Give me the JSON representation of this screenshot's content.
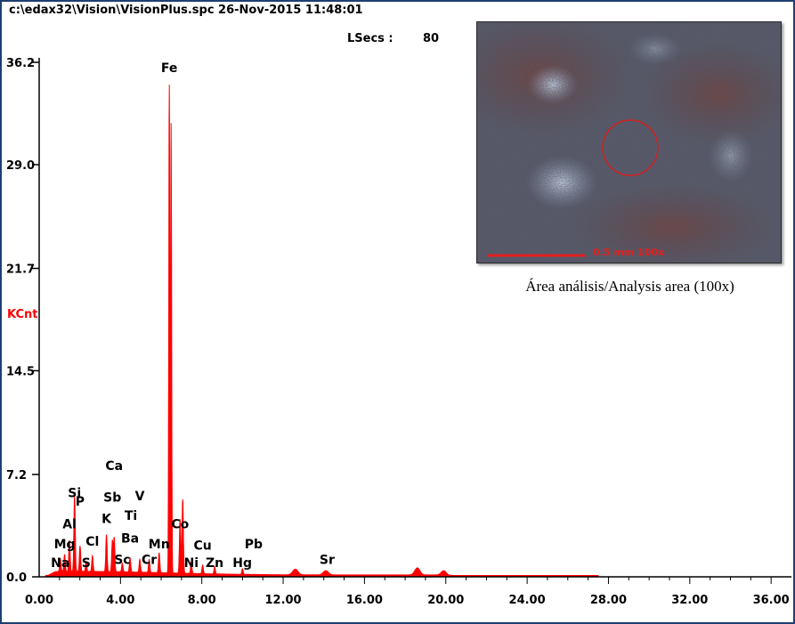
{
  "header": {
    "file_info": "c:\\edax32\\Vision\\VisionPlus.spc  26-Nov-2015 11:48:01",
    "lsecs_label": "LSecs :",
    "lsecs_value": "80"
  },
  "inset": {
    "scale_label": "0.5 mm  100x",
    "caption": "Área análisis/Analysis area (100x)"
  },
  "chart_data": {
    "type": "line",
    "xlim": [
      0,
      37
    ],
    "ylim": [
      0,
      36.2
    ],
    "ylabel": "KCnt",
    "x_ticks": [
      "0.00",
      "4.00",
      "8.00",
      "12.00",
      "16.00",
      "20.00",
      "24.00",
      "28.00",
      "32.00",
      "36.00"
    ],
    "x_tick_values": [
      0,
      4,
      8,
      12,
      16,
      20,
      24,
      28,
      32,
      36
    ],
    "y_ticks": [
      "0.0",
      "7.2",
      "14.5",
      "21.7",
      "29.0",
      "36.2"
    ],
    "y_tick_values": [
      0,
      7.2,
      14.5,
      21.7,
      29.0,
      36.2
    ],
    "grid": false,
    "series_color": "#ff0000",
    "peaks": [
      {
        "x": 1.04,
        "y": 0.9
      },
      {
        "x": 1.25,
        "y": 1.2
      },
      {
        "x": 1.49,
        "y": 2.2
      },
      {
        "x": 1.74,
        "y": 5.3
      },
      {
        "x": 2.01,
        "y": 1.8
      },
      {
        "x": 2.31,
        "y": 0.7
      },
      {
        "x": 2.62,
        "y": 1.1
      },
      {
        "x": 3.31,
        "y": 2.6
      },
      {
        "x": 3.6,
        "y": 2.2
      },
      {
        "x": 3.69,
        "y": 2.4
      },
      {
        "x": 4.09,
        "y": 0.6
      },
      {
        "x": 4.47,
        "y": 1.0
      },
      {
        "x": 4.95,
        "y": 0.9
      },
      {
        "x": 5.41,
        "y": 0.9
      },
      {
        "x": 5.9,
        "y": 1.4
      },
      {
        "x": 6.4,
        "y": 34.3
      },
      {
        "x": 6.49,
        "y": 31.6
      },
      {
        "x": 6.93,
        "y": 3.8
      },
      {
        "x": 7.06,
        "y": 5.2
      },
      {
        "x": 7.48,
        "y": 0.8
      },
      {
        "x": 8.04,
        "y": 0.6
      },
      {
        "x": 8.63,
        "y": 0.5
      },
      {
        "x": 10.0,
        "y": 0.4
      },
      {
        "x": 12.6,
        "y": 0.4
      },
      {
        "x": 14.1,
        "y": 0.3
      },
      {
        "x": 18.6,
        "y": 0.5
      },
      {
        "x": 19.9,
        "y": 0.3
      }
    ],
    "element_labels": [
      {
        "label": "Fe",
        "x": 6.4,
        "y": 35.5
      },
      {
        "label": "Ca",
        "x": 3.69,
        "y": 7.5
      },
      {
        "label": "Si",
        "x": 1.74,
        "y": 5.6
      },
      {
        "label": "P",
        "x": 2.01,
        "y": 5.0
      },
      {
        "label": "Sb",
        "x": 3.6,
        "y": 5.3
      },
      {
        "label": "V",
        "x": 4.95,
        "y": 5.4
      },
      {
        "label": "Ti",
        "x": 4.51,
        "y": 4.0
      },
      {
        "label": "K",
        "x": 3.31,
        "y": 3.8
      },
      {
        "label": "Al",
        "x": 1.49,
        "y": 3.4
      },
      {
        "label": "Co",
        "x": 6.93,
        "y": 3.4
      },
      {
        "label": "Mg",
        "x": 1.25,
        "y": 2.0
      },
      {
        "label": "Cl",
        "x": 2.62,
        "y": 2.2
      },
      {
        "label": "Ba",
        "x": 4.47,
        "y": 2.4
      },
      {
        "label": "Mn",
        "x": 5.9,
        "y": 2.0
      },
      {
        "label": "Cu",
        "x": 8.04,
        "y": 1.9
      },
      {
        "label": "Pb",
        "x": 10.55,
        "y": 2.0
      },
      {
        "label": "Na",
        "x": 1.04,
        "y": 0.7
      },
      {
        "label": "S",
        "x": 2.31,
        "y": 0.7
      },
      {
        "label": "Sc",
        "x": 4.09,
        "y": 0.9
      },
      {
        "label": "Cr",
        "x": 5.41,
        "y": 0.9
      },
      {
        "label": "Ni",
        "x": 7.48,
        "y": 0.7
      },
      {
        "label": "Zn",
        "x": 8.63,
        "y": 0.7
      },
      {
        "label": "Hg",
        "x": 9.99,
        "y": 0.7
      },
      {
        "label": "Sr",
        "x": 14.16,
        "y": 0.9
      }
    ]
  }
}
